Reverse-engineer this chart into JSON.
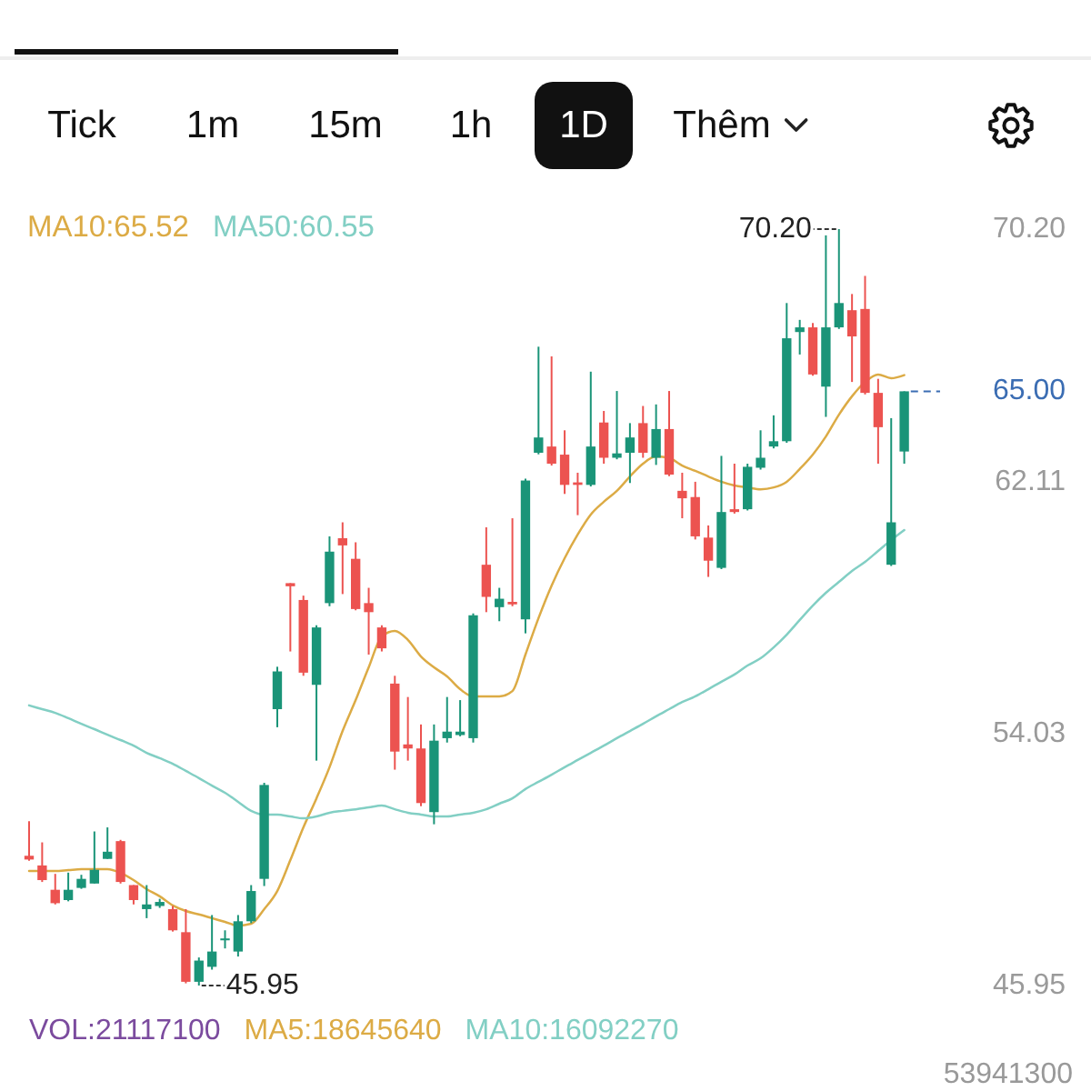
{
  "chart_data": [
    {
      "type": "other",
      "annotations": [
        "Tick",
        "1m",
        "15m",
        "1h",
        "1D",
        "Thêm"
      ]
    },
    {
      "type": "candlestick",
      "categories": [
        null,
        null,
        null,
        null,
        null,
        null,
        null,
        null,
        null,
        null,
        null,
        null,
        null,
        null,
        null,
        null,
        null,
        null,
        null,
        null,
        null,
        null,
        null,
        null,
        null,
        null,
        null,
        null,
        null,
        null,
        null,
        null,
        null,
        null,
        null,
        null,
        null,
        null,
        null,
        null,
        null,
        null,
        null,
        null,
        null,
        null,
        null,
        null,
        null,
        null,
        null,
        null,
        null,
        null,
        null,
        null,
        null,
        null,
        null,
        null,
        null,
        null,
        null,
        null,
        null,
        null,
        null,
        null
      ],
      "ohlc": [
        [
          50.11,
          51.22,
          49.95,
          49.99
        ],
        [
          49.8,
          50.54,
          49.27,
          49.33
        ],
        [
          49.02,
          49.53,
          48.55,
          48.59
        ],
        [
          48.69,
          49.57,
          48.65,
          49.02
        ],
        [
          49.08,
          49.5,
          49.05,
          49.37
        ],
        [
          49.22,
          50.89,
          49.22,
          49.66
        ],
        [
          50.01,
          51.02,
          50.01,
          50.24
        ],
        [
          50.58,
          50.62,
          49.22,
          49.27
        ],
        [
          49.17,
          49.17,
          48.55,
          48.69
        ],
        [
          48.4,
          49.17,
          48.11,
          48.55
        ],
        [
          48.5,
          48.73,
          48.44,
          48.63
        ],
        [
          48.4,
          48.5,
          47.68,
          47.72
        ],
        [
          47.66,
          48.4,
          46.02,
          46.07
        ],
        [
          46.07,
          46.85,
          45.95,
          46.75
        ],
        [
          46.55,
          48.21,
          46.46,
          47.04
        ],
        [
          47.4,
          47.72,
          47.14,
          47.46
        ],
        [
          47.04,
          48.21,
          46.88,
          48.01
        ],
        [
          48.01,
          49.17,
          47.95,
          48.98
        ],
        [
          49.37,
          52.45,
          49.14,
          52.38
        ],
        [
          54.81,
          56.17,
          54.23,
          56.02
        ],
        [
          58.85,
          58.85,
          56.66,
          58.75
        ],
        [
          58.31,
          58.45,
          55.88,
          55.98
        ],
        [
          55.59,
          57.5,
          53.16,
          57.43
        ],
        [
          58.21,
          60.35,
          58.11,
          59.86
        ],
        [
          60.29,
          60.8,
          58.5,
          60.06
        ],
        [
          59.63,
          60.16,
          57.98,
          58.02
        ],
        [
          58.21,
          58.7,
          56.56,
          57.92
        ],
        [
          57.43,
          57.5,
          56.66,
          56.76
        ],
        [
          55.63,
          55.88,
          52.87,
          53.45
        ],
        [
          53.68,
          55.2,
          53.16,
          53.55
        ],
        [
          53.55,
          54.32,
          51.7,
          51.8
        ],
        [
          51.51,
          54.32,
          51.12,
          53.8
        ],
        [
          53.88,
          55.2,
          53.74,
          54.09
        ],
        [
          53.98,
          55.1,
          53.94,
          54.09
        ],
        [
          53.88,
          57.88,
          53.74,
          57.82
        ],
        [
          59.44,
          60.64,
          57.92,
          58.41
        ],
        [
          58.08,
          58.7,
          57.63,
          58.35
        ],
        [
          58.25,
          60.93,
          58.11,
          58.17
        ],
        [
          57.69,
          62.2,
          57.24,
          62.14
        ],
        [
          63.03,
          66.43,
          62.98,
          63.52
        ],
        [
          63.23,
          66.12,
          62.62,
          62.68
        ],
        [
          62.97,
          63.75,
          61.71,
          62.0
        ],
        [
          62.08,
          62.39,
          61.03,
          62.0
        ],
        [
          62.0,
          65.63,
          61.95,
          63.23
        ],
        [
          64.0,
          64.37,
          62.68,
          62.87
        ],
        [
          62.87,
          65.01,
          62.82,
          63.01
        ],
        [
          63.03,
          63.98,
          62.06,
          63.52
        ],
        [
          63.98,
          64.53,
          62.87,
          63.03
        ],
        [
          62.87,
          64.58,
          62.64,
          63.79
        ],
        [
          63.79,
          65.01,
          62.28,
          62.33
        ],
        [
          61.81,
          62.39,
          60.93,
          61.57
        ],
        [
          61.61,
          62.1,
          60.25,
          60.35
        ],
        [
          60.31,
          60.7,
          59.05,
          59.57
        ],
        [
          59.34,
          62.93,
          59.3,
          61.13
        ],
        [
          61.22,
          62.68,
          61.08,
          61.13
        ],
        [
          61.22,
          62.68,
          61.18,
          62.58
        ],
        [
          62.55,
          63.75,
          62.49,
          62.87
        ],
        [
          63.23,
          64.23,
          63.17,
          63.4
        ],
        [
          63.4,
          67.83,
          63.35,
          66.7
        ],
        [
          66.9,
          67.29,
          66.18,
          67.05
        ],
        [
          67.05,
          67.19,
          65.5,
          65.54
        ],
        [
          65.15,
          70.0,
          64.18,
          67.05
        ],
        [
          67.05,
          70.2,
          67.0,
          67.83
        ],
        [
          67.6,
          68.12,
          65.3,
          66.76
        ],
        [
          67.64,
          68.7,
          64.9,
          64.95
        ],
        [
          64.95,
          65.4,
          62.68,
          63.85
        ],
        [
          59.44,
          64.14,
          59.4,
          60.8
        ],
        [
          63.07,
          65.0,
          62.68,
          65.0
        ]
      ],
      "colors": [
        "#ec5350",
        "#ec5350",
        "#ec5350",
        "#1a9478",
        "#1a9478",
        "#1a9478",
        "#1a9478",
        "#ec5350",
        "#ec5350",
        "#1a9478",
        "#1a9478",
        "#ec5350",
        "#ec5350",
        "#1a9478",
        "#1a9478",
        "#1a9478",
        "#1a9478",
        "#1a9478",
        "#1a9478",
        "#1a9478",
        "#ec5350",
        "#ec5350",
        "#1a9478",
        "#1a9478",
        "#ec5350",
        "#ec5350",
        "#ec5350",
        "#ec5350",
        "#ec5350",
        "#ec5350",
        "#ec5350",
        "#1a9478",
        "#1a9478",
        "#1a9478",
        "#1a9478",
        "#ec5350",
        "#1a9478",
        "#ec5350",
        "#1a9478",
        "#1a9478",
        "#ec5350",
        "#ec5350",
        "#ec5350",
        "#1a9478",
        "#ec5350",
        "#1a9478",
        "#1a9478",
        "#ec5350",
        "#1a9478",
        "#ec5350",
        "#ec5350",
        "#ec5350",
        "#ec5350",
        "#1a9478",
        "#ec5350",
        "#1a9478",
        "#1a9478",
        "#1a9478",
        "#1a9478",
        "#1a9478",
        "#ec5350",
        "#1a9478",
        "#1a9478",
        "#ec5350",
        "#ec5350",
        "#ec5350",
        "#1a9478",
        "#1a9478"
      ],
      "series": [
        {
          "name": "MA10:65.52",
          "type": "line",
          "color": "#dcab45",
          "values": [
            49.62,
            49.62,
            49.62,
            49.65,
            49.68,
            49.68,
            49.68,
            49.56,
            49.33,
            49.04,
            48.81,
            48.52,
            48.34,
            48.23,
            48.11,
            47.99,
            47.87,
            47.93,
            48.4,
            48.98,
            49.97,
            51.02,
            51.95,
            52.95,
            54.11,
            55.1,
            56.15,
            57.14,
            57.32,
            57.03,
            56.5,
            56.15,
            55.86,
            55.45,
            55.22,
            55.22,
            55.22,
            55.39,
            56.56,
            57.73,
            58.77,
            59.65,
            60.41,
            61.05,
            61.46,
            61.81,
            62.27,
            62.68,
            62.91,
            62.86,
            62.62,
            62.45,
            62.27,
            62.1,
            61.98,
            61.92,
            61.86,
            61.92,
            62.1,
            62.51,
            62.97,
            63.55,
            64.25,
            64.84,
            65.3,
            65.54,
            65.42,
            65.52
          ]
        },
        {
          "name": "MA50:60.55",
          "type": "line",
          "color": "#82cfc4",
          "values": [
            54.93,
            54.81,
            54.69,
            54.52,
            54.34,
            54.17,
            53.99,
            53.82,
            53.64,
            53.41,
            53.24,
            53.06,
            52.83,
            52.6,
            52.36,
            52.13,
            51.84,
            51.55,
            51.43,
            51.43,
            51.37,
            51.31,
            51.37,
            51.49,
            51.55,
            51.6,
            51.66,
            51.72,
            51.6,
            51.49,
            51.43,
            51.37,
            51.37,
            51.43,
            51.49,
            51.6,
            51.78,
            51.95,
            52.25,
            52.48,
            52.71,
            52.95,
            53.18,
            53.41,
            53.64,
            53.88,
            54.11,
            54.34,
            54.58,
            54.81,
            55.04,
            55.22,
            55.45,
            55.69,
            55.92,
            56.21,
            56.44,
            56.79,
            57.2,
            57.67,
            58.13,
            58.54,
            58.89,
            59.24,
            59.53,
            59.88,
            60.23,
            60.55
          ]
        }
      ],
      "ylim": [
        45.95,
        70.2
      ],
      "yticks": [
        {
          "value": 70.2,
          "label": "70.20"
        },
        62.11,
        54.03,
        45.95
      ],
      "tick_labels": "y",
      "legend": "top left",
      "annotations": [
        "70.20",
        "45.95",
        "65.00"
      ]
    },
    {
      "type": "other",
      "series": [
        {
          "name": "VOL:21117100",
          "color": "#7b4b9e"
        },
        {
          "name": "MA5:18645640",
          "color": "#dcab45"
        },
        {
          "name": "MA10:16092270",
          "color": "#82cfc4"
        }
      ],
      "annotations": [
        "53941300"
      ]
    }
  ]
}
